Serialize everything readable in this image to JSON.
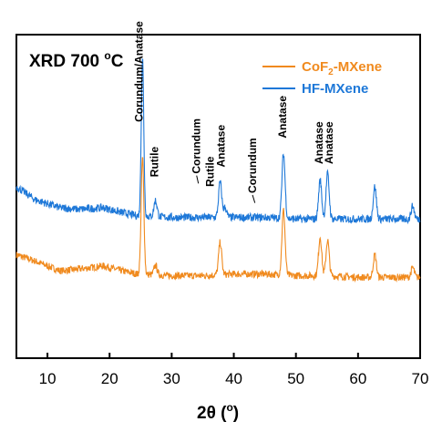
{
  "chart_data": {
    "type": "line",
    "title": "XRD 700 °C",
    "title_main": "XRD 700 ",
    "title_deg": "o",
    "title_unit": "C",
    "xlabel": "2θ (°)",
    "xlabel_main": "2θ (",
    "xlabel_deg": "o",
    "xlabel_close": ")",
    "ylabel": "",
    "xlim": [
      5,
      70
    ],
    "ylim": [
      0,
      100
    ],
    "xticks": [
      10,
      20,
      30,
      40,
      50,
      60,
      70
    ],
    "yticks_shown": false,
    "grid": false,
    "legend_placement": "top-right",
    "legend": [
      {
        "main": "CoF",
        "sub": "2",
        "rest": "-MXene",
        "color": "#f08a1e"
      },
      {
        "main": "HF-MXene",
        "sub": "",
        "rest": "",
        "color": "#1e78d8"
      }
    ],
    "series": [
      {
        "name": "CoF2-MXene",
        "color": "#f08a1e",
        "baseline": [
          [
            5,
            32
          ],
          [
            8,
            30
          ],
          [
            12,
            27
          ],
          [
            15,
            27.5
          ],
          [
            19,
            28.5
          ],
          [
            22,
            27
          ],
          [
            24.5,
            26
          ],
          [
            30,
            25.5
          ],
          [
            35,
            25.5
          ],
          [
            40,
            26
          ],
          [
            45,
            26
          ],
          [
            50,
            25.5
          ],
          [
            55,
            25.5
          ],
          [
            60,
            25
          ],
          [
            65,
            25
          ],
          [
            70,
            25
          ]
        ],
        "peaks": [
          [
            25.3,
            36,
            0.22
          ],
          [
            27.4,
            3,
            0.25
          ],
          [
            37.8,
            10,
            0.25
          ],
          [
            48.0,
            20,
            0.25
          ],
          [
            53.9,
            12,
            0.25
          ],
          [
            55.1,
            11,
            0.25
          ],
          [
            62.7,
            7,
            0.25
          ],
          [
            68.8,
            3,
            0.25
          ]
        ],
        "noise": 1.1
      },
      {
        "name": "HF-MXene",
        "color": "#1e78d8",
        "baseline": [
          [
            5,
            53
          ],
          [
            8,
            49
          ],
          [
            12,
            46.5
          ],
          [
            15,
            46
          ],
          [
            19,
            46.5
          ],
          [
            22,
            45
          ],
          [
            24.5,
            44
          ],
          [
            30,
            43.5
          ],
          [
            35,
            43.5
          ],
          [
            40,
            43.5
          ],
          [
            45,
            43.5
          ],
          [
            50,
            43
          ],
          [
            55,
            43
          ],
          [
            60,
            43
          ],
          [
            65,
            43
          ],
          [
            70,
            43
          ]
        ],
        "peaks": [
          [
            25.3,
            49,
            0.2
          ],
          [
            27.4,
            5,
            0.25
          ],
          [
            37.8,
            11,
            0.25
          ],
          [
            38.6,
            3,
            0.25
          ],
          [
            48.0,
            20,
            0.25
          ],
          [
            53.9,
            12,
            0.25
          ],
          [
            55.1,
            14,
            0.25
          ],
          [
            62.7,
            10,
            0.25
          ],
          [
            68.8,
            4,
            0.25
          ]
        ],
        "noise": 1.2
      }
    ],
    "annotations": [
      {
        "text": "Corundum/Anatase",
        "x": 25.3,
        "y": 73,
        "leader": false
      },
      {
        "text": "Rutile",
        "x": 27.8,
        "y": 56,
        "leader": false
      },
      {
        "text": "Corundum",
        "x": 34.6,
        "y": 57,
        "leader": true,
        "leader_to": [
          34.3,
          54
        ]
      },
      {
        "text": "Rutile",
        "x": 36.8,
        "y": 53,
        "leader": false
      },
      {
        "text": "Anatase",
        "x": 38.5,
        "y": 59,
        "leader": false
      },
      {
        "text": "Corundum",
        "x": 43.6,
        "y": 51,
        "leader": true,
        "leader_to": [
          43.4,
          48
        ]
      },
      {
        "text": "Anatase",
        "x": 48.4,
        "y": 68,
        "leader": false
      },
      {
        "text": "Anatase",
        "x": 54.3,
        "y": 60,
        "leader": false
      },
      {
        "text": "Anatase",
        "x": 55.9,
        "y": 60,
        "leader": false
      }
    ]
  }
}
